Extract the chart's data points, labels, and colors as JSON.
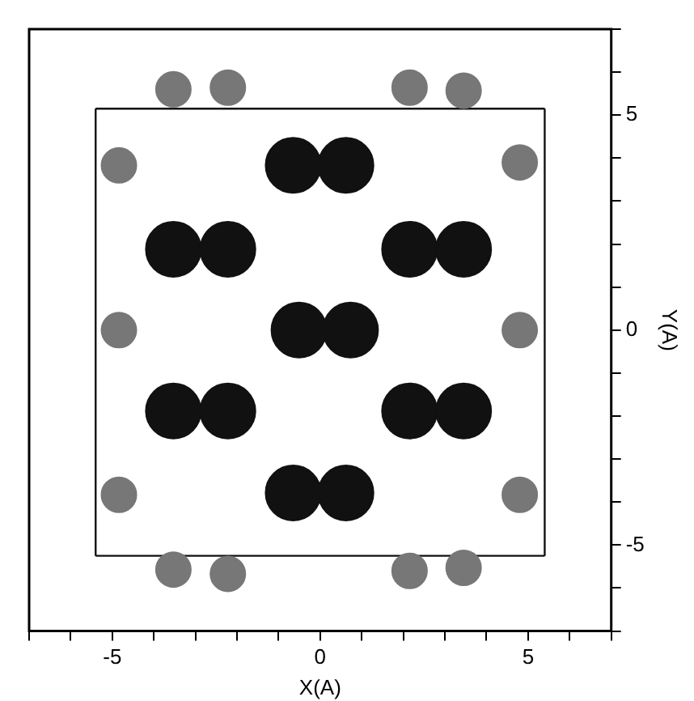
{
  "chart_data": {
    "type": "bubble",
    "xlabel": "X(A)",
    "ylabel": "Y(A)",
    "xlim": [
      -7,
      7
    ],
    "ylim": [
      -7,
      7
    ],
    "xticks": [
      {
        "value": -7,
        "label": null
      },
      {
        "value": -6,
        "label": null
      },
      -5,
      {
        "value": -4,
        "label": null
      },
      {
        "value": -3,
        "label": null
      },
      {
        "value": -2,
        "label": null
      },
      {
        "value": -1,
        "label": null
      },
      0,
      {
        "value": 1,
        "label": null
      },
      {
        "value": 2,
        "label": null
      },
      {
        "value": 3,
        "label": null
      },
      {
        "value": 4,
        "label": null
      },
      5,
      {
        "value": 6,
        "label": null
      },
      {
        "value": 7,
        "label": null
      }
    ],
    "yticks": [
      {
        "value": -7,
        "label": null
      },
      {
        "value": -6,
        "label": null
      },
      -5,
      {
        "value": -4,
        "label": null
      },
      {
        "value": -3,
        "label": null
      },
      {
        "value": -2,
        "label": null
      },
      {
        "value": -1,
        "label": null
      },
      0,
      {
        "value": 1,
        "label": null
      },
      {
        "value": 2,
        "label": null
      },
      {
        "value": 3,
        "label": null
      },
      {
        "value": 4,
        "label": null
      },
      5,
      {
        "value": 6,
        "label": null
      },
      {
        "value": 7,
        "label": null
      }
    ],
    "grid": false,
    "legend": false,
    "marker": "circle",
    "series": [
      {
        "color": "#111111",
        "x": [
          -0.65,
          0.62,
          -3.53,
          -2.22,
          2.15,
          3.45,
          -0.51,
          0.73,
          -3.53,
          -2.22,
          2.15,
          3.45,
          -0.65,
          0.62
        ],
        "values": [
          3.83,
          3.83,
          1.88,
          1.88,
          1.88,
          1.88,
          0,
          0,
          -1.88,
          -1.88,
          -1.88,
          -1.88,
          -3.79,
          -3.79
        ],
        "sizes": [
          1,
          1,
          1,
          1,
          1,
          1,
          1,
          1,
          1,
          1,
          1,
          1,
          1,
          1
        ]
      },
      {
        "color": "#777777",
        "x": [
          -4.84,
          4.8,
          -4.84,
          4.8,
          -4.84,
          4.8,
          -3.53,
          -2.22,
          2.15,
          3.45,
          -3.53,
          -2.22,
          2.15,
          3.45
        ],
        "values": [
          3.83,
          3.9,
          0,
          0,
          -3.83,
          -3.83,
          5.6,
          5.64,
          5.64,
          5.57,
          -5.57,
          -5.67,
          -5.6,
          -5.53
        ],
        "sizes": [
          0.4,
          0.4,
          0.4,
          0.4,
          0.4,
          0.4,
          0.4,
          0.4,
          0.4,
          0.4,
          0.4,
          0.4,
          0.4,
          0.4
        ]
      },
      {
        "type": "line",
        "marker": "none",
        "color": "#111111",
        "x": [
          -5.4,
          5.4
        ],
        "values": [
          5.15,
          5.15
        ]
      },
      {
        "type": "line",
        "marker": "none",
        "color": "#111111",
        "x": [
          -5.4,
          5.4
        ],
        "values": [
          -5.25,
          -5.25
        ]
      },
      {
        "type": "line",
        "marker": "none",
        "color": "#111111",
        "x": [
          -5.4,
          -5.4
        ],
        "values": [
          -5.25,
          5.15
        ]
      },
      {
        "type": "line",
        "marker": "none",
        "color": "#111111",
        "x": [
          5.4,
          5.4
        ],
        "values": [
          -5.25,
          5.15
        ]
      }
    ]
  }
}
